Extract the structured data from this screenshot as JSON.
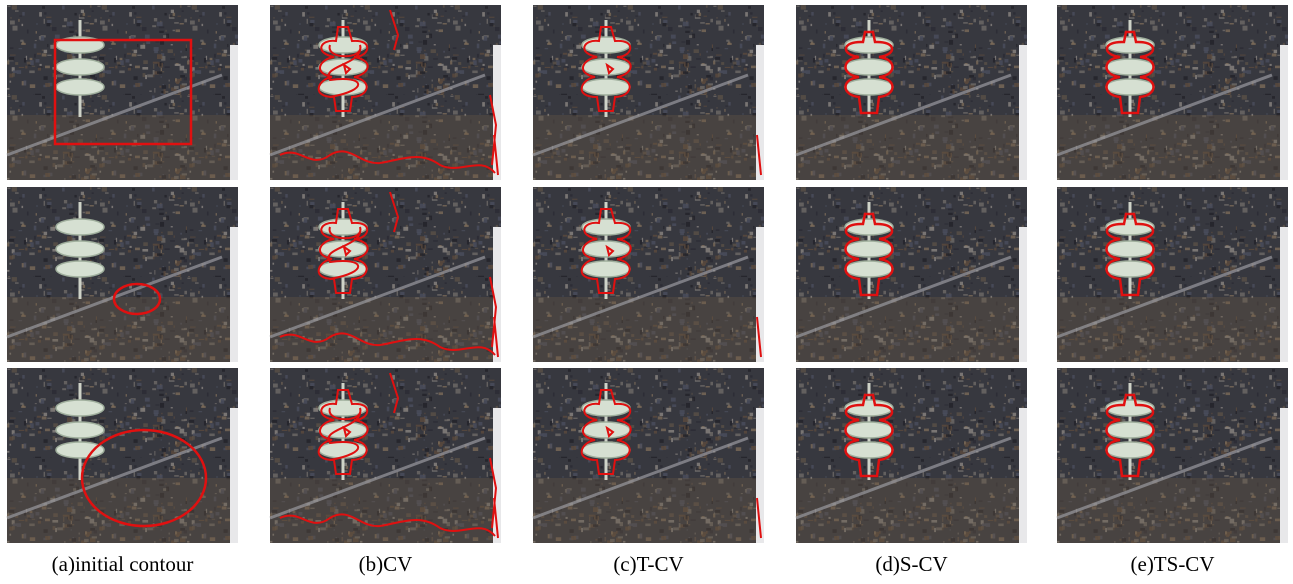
{
  "captions": [
    "(a)initial contour",
    "(b)CV",
    "(c)T-CV",
    "(d)S-CV",
    "(e)TS-CV"
  ]
}
